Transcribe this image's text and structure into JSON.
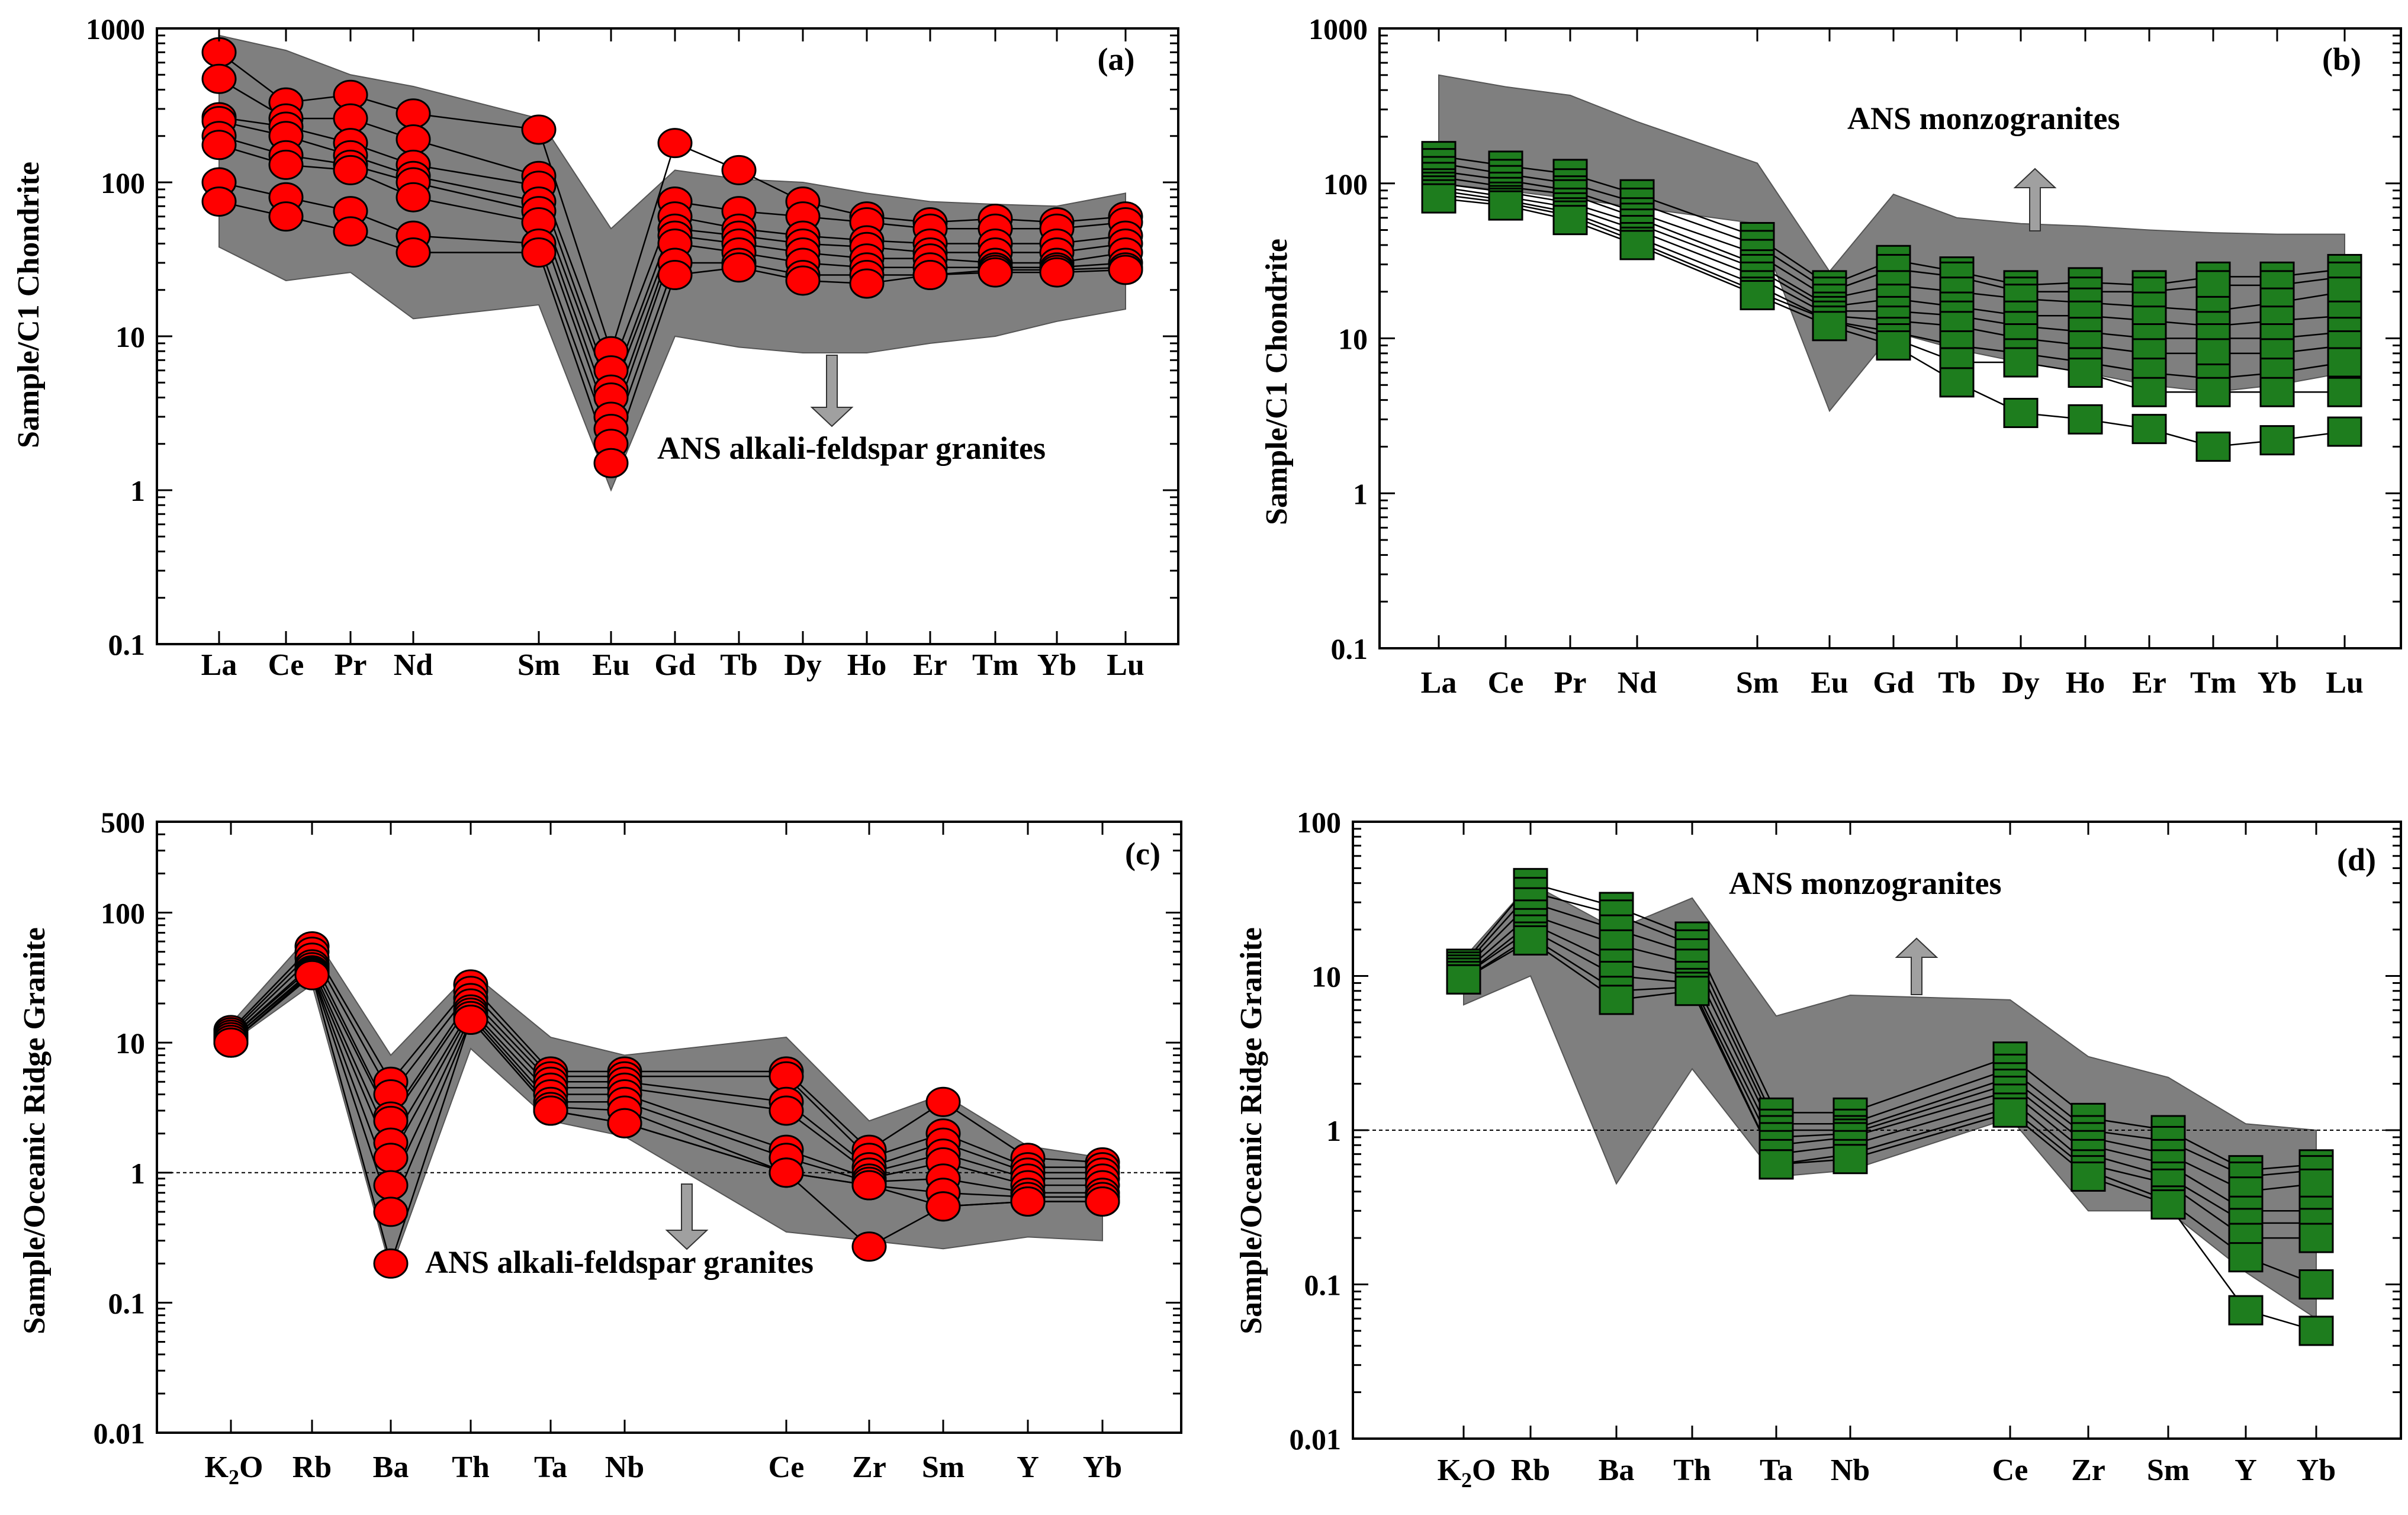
{
  "colors": {
    "field": "#7f7f7f",
    "red_marker": "#ff0000",
    "green_marker": "#1e7d1e",
    "line": "#000000",
    "arrow": "#a0a0a0"
  },
  "chart_data": [
    {
      "id": "a",
      "type": "line",
      "panel_label": "(a)",
      "ylabel": "Sample/C1 Chondrite",
      "yscale": "log",
      "ylim": [
        0.1,
        1000
      ],
      "yticks": [
        "0.1",
        "1",
        "10",
        "100",
        "1000"
      ],
      "categories": [
        "La",
        "Ce",
        "Pr",
        "Nd",
        "Sm",
        "Eu",
        "Gd",
        "Tb",
        "Dy",
        "Ho",
        "Er",
        "Tm",
        "Yb",
        "Lu"
      ],
      "field_label": "ANS alkali-feldspar granites",
      "arrow": "down",
      "marker": "circle",
      "marker_color": "#ff0000",
      "field_upper": [
        900,
        720,
        500,
        420,
        260,
        50,
        120,
        105,
        100,
        85,
        75,
        72,
        70,
        85
      ],
      "field_lower": [
        38,
        23,
        26,
        13,
        16,
        1.0,
        10,
        8.5,
        7.8,
        7.8,
        9,
        10,
        12.5,
        15
      ],
      "series": [
        {
          "name": "s1",
          "values": [
            700,
            330,
            370,
            280,
            220,
            8,
            180,
            120,
            75,
            60,
            55,
            58,
            55,
            60
          ]
        },
        {
          "name": "s2",
          "values": [
            470,
            260,
            260,
            190,
            110,
            6,
            75,
            65,
            60,
            55,
            50,
            50,
            50,
            55
          ]
        },
        {
          "name": "s3",
          "values": [
            265,
            230,
            180,
            130,
            95,
            4.5,
            60,
            50,
            45,
            42,
            40,
            40,
            40,
            45
          ]
        },
        {
          "name": "s4",
          "values": [
            250,
            200,
            150,
            110,
            75,
            4,
            50,
            45,
            40,
            38,
            35,
            35,
            35,
            40
          ]
        },
        {
          "name": "s5",
          "values": [
            200,
            150,
            130,
            100,
            65,
            3,
            45,
            40,
            35,
            32,
            32,
            30,
            30,
            35
          ]
        },
        {
          "name": "s6",
          "values": [
            175,
            130,
            120,
            80,
            55,
            2.5,
            40,
            35,
            30,
            28,
            28,
            28,
            28,
            30
          ]
        },
        {
          "name": "s7",
          "values": [
            100,
            80,
            65,
            45,
            40,
            2,
            30,
            30,
            25,
            25,
            25,
            27,
            27,
            28
          ]
        },
        {
          "name": "s8",
          "values": [
            75,
            60,
            48,
            35,
            35,
            1.5,
            25,
            28,
            23,
            22,
            25,
            26,
            26,
            27
          ]
        }
      ]
    },
    {
      "id": "b",
      "type": "line",
      "panel_label": "(b)",
      "ylabel": "Sample/C1 Chondrite",
      "yscale": "log",
      "ylim": [
        0.1,
        1000
      ],
      "yticks": [
        "0.1",
        "1",
        "10",
        "100",
        "1000"
      ],
      "categories": [
        "La",
        "Ce",
        "Pr",
        "Nd",
        "Sm",
        "Eu",
        "Gd",
        "Tb",
        "Dy",
        "Ho",
        "Er",
        "Tm",
        "Yb",
        "Lu"
      ],
      "field_label": "ANS monzogranites",
      "arrow": "up",
      "marker": "square",
      "marker_color": "#1e7d1e",
      "field_upper": [
        500,
        420,
        370,
        250,
        135,
        27,
        85,
        60,
        55,
        53,
        50,
        48,
        47,
        47
      ],
      "field_lower": [
        100,
        90,
        80,
        70,
        55,
        3.4,
        11,
        8.5,
        7,
        6,
        5,
        4.5,
        5,
        6
      ],
      "series": [
        {
          "name": "s1",
          "values": [
            150,
            130,
            115,
            85,
            45,
            22,
            32,
            27,
            22,
            23,
            22,
            25,
            25,
            28
          ]
        },
        {
          "name": "s2",
          "values": [
            135,
            115,
            100,
            75,
            40,
            20,
            28,
            25,
            20,
            20,
            20,
            22,
            22,
            25
          ]
        },
        {
          "name": "s3",
          "values": [
            120,
            105,
            90,
            65,
            35,
            18,
            22,
            20,
            18,
            17,
            16,
            15,
            17,
            20
          ]
        },
        {
          "name": "s4",
          "values": [
            110,
            95,
            85,
            60,
            30,
            16,
            18,
            16,
            14,
            14,
            13,
            12,
            13,
            14
          ]
        },
        {
          "name": "s5",
          "values": [
            100,
            88,
            75,
            55,
            28,
            15,
            15,
            14,
            12,
            11,
            10,
            10,
            10,
            11
          ]
        },
        {
          "name": "s6",
          "values": [
            95,
            82,
            70,
            50,
            25,
            14,
            13,
            12,
            10,
            9,
            8,
            8,
            8,
            9
          ]
        },
        {
          "name": "s7",
          "values": [
            90,
            78,
            65,
            45,
            22,
            13,
            11,
            9,
            8,
            7,
            6,
            5.5,
            6,
            7
          ]
        },
        {
          "name": "s8",
          "values": [
            85,
            75,
            62,
            42,
            20,
            13,
            10,
            7,
            7,
            6,
            4.5,
            4.5,
            4.5,
            4.5
          ]
        },
        {
          "name": "s9",
          "values": [
            80,
            72,
            58,
            40,
            19,
            12,
            9,
            5.2,
            3.3,
            3.0,
            2.6,
            2.0,
            2.2,
            2.5
          ]
        }
      ]
    },
    {
      "id": "c",
      "type": "line",
      "panel_label": "(c)",
      "ylabel": "Sample/Oceanic Ridge Granite",
      "yscale": "log",
      "ylim": [
        0.01,
        500
      ],
      "yticks": [
        "0.01",
        "0.1",
        "1",
        "10",
        "100",
        "500"
      ],
      "categories": [
        "K2O",
        "Rb",
        "Ba",
        "Th",
        "Ta",
        "Nb",
        "",
        "Ce",
        "Zr",
        "Sm",
        "Y",
        "Yb"
      ],
      "category_labels": [
        "K",
        "Rb",
        "Ba",
        "Th",
        "Ta",
        "Nb",
        "",
        "Ce",
        "Zr",
        "Sm",
        "Y",
        "Yb"
      ],
      "k2o_subscript": "2",
      "k2o_tail": "O",
      "reference_line": 1,
      "field_label": "ANS alkali-feldspar granites",
      "arrow": "down",
      "marker": "circle",
      "marker_color": "#ff0000",
      "field_upper": [
        14,
        70,
        8,
        35,
        11,
        8,
        null,
        11,
        2.5,
        4,
        1.6,
        1.3
      ],
      "field_lower": [
        10,
        28,
        0.18,
        9,
        2.5,
        1.9,
        null,
        0.35,
        0.3,
        0.26,
        0.32,
        0.3
      ],
      "series": [
        {
          "name": "s1",
          "values": [
            12.5,
            55,
            5,
            28,
            6,
            6,
            null,
            6,
            1.5,
            3.5,
            1.3,
            1.2
          ]
        },
        {
          "name": "s2",
          "values": [
            12,
            50,
            4,
            25,
            5.5,
            5.5,
            null,
            5.5,
            1.3,
            2,
            1.1,
            1.1
          ]
        },
        {
          "name": "s3",
          "values": [
            11.5,
            45,
            2.7,
            22,
            5,
            5,
            null,
            3.5,
            1.1,
            1.7,
            1,
            1
          ]
        },
        {
          "name": "s4",
          "values": [
            11,
            40,
            2.5,
            20,
            4.5,
            4.5,
            null,
            3,
            1,
            1.4,
            0.9,
            0.9
          ]
        },
        {
          "name": "s5",
          "values": [
            11,
            38,
            1.7,
            18,
            4,
            4,
            null,
            1.5,
            0.9,
            1.2,
            0.8,
            0.8
          ]
        },
        {
          "name": "s6",
          "values": [
            10.5,
            36,
            1.3,
            17,
            3.5,
            3.5,
            null,
            1.3,
            0.85,
            0.9,
            0.7,
            0.7
          ]
        },
        {
          "name": "s7",
          "values": [
            10.5,
            35,
            0.8,
            16,
            3.2,
            3,
            null,
            1,
            0.8,
            0.7,
            0.65,
            0.65
          ]
        },
        {
          "name": "s8",
          "values": [
            10,
            34,
            0.5,
            15,
            3,
            2.4,
            null,
            1,
            0.27,
            0.55,
            0.6,
            0.6
          ]
        },
        {
          "name": "s9",
          "values": [
            10,
            33,
            0.2,
            15,
            3,
            2.4,
            null,
            1,
            0.8,
            0.55,
            0.6,
            0.6
          ]
        }
      ]
    },
    {
      "id": "d",
      "type": "line",
      "panel_label": "(d)",
      "ylabel": "Sample/Oceanic Ridge Granite",
      "yscale": "log",
      "ylim": [
        0.01,
        100
      ],
      "yticks": [
        "0.01",
        "0.1",
        "1",
        "10",
        "100"
      ],
      "categories": [
        "K2O",
        "Rb",
        "Ba",
        "Th",
        "Ta",
        "Nb",
        "",
        "Ce",
        "Zr",
        "Sm",
        "Y",
        "Yb"
      ],
      "category_labels": [
        "K",
        "Rb",
        "Ba",
        "Th",
        "Ta",
        "Nb",
        "",
        "Ce",
        "Zr",
        "Sm",
        "Y",
        "Yb"
      ],
      "k2o_subscript": "2",
      "k2o_tail": "O",
      "reference_line": 1,
      "field_label": "ANS monzogranites",
      "arrow": "up",
      "marker": "square",
      "marker_color": "#1e7d1e",
      "field_upper": [
        13,
        40,
        20,
        32,
        5.5,
        7.5,
        null,
        7,
        3,
        2.2,
        1.1,
        1
      ],
      "field_lower": [
        6.5,
        10,
        0.45,
        2.5,
        0.5,
        0.55,
        null,
        1.2,
        0.3,
        0.3,
        0.12,
        0.06
      ],
      "series": [
        {
          "name": "s1",
          "values": [
            12,
            40,
            28,
            18,
            1.3,
            1.3,
            null,
            3,
            1.2,
            1,
            0.55,
            0.6
          ]
        },
        {
          "name": "s2",
          "values": [
            11.5,
            35,
            25,
            16,
            1.1,
            1.1,
            null,
            2.5,
            1,
            0.85,
            0.5,
            0.55
          ]
        },
        {
          "name": "s3",
          "values": [
            11,
            30,
            20,
            14,
            1,
            1,
            null,
            2.2,
            0.9,
            0.7,
            0.4,
            0.45
          ]
        },
        {
          "name": "s4",
          "values": [
            10.5,
            25,
            16,
            12,
            0.9,
            0.95,
            null,
            2,
            0.8,
            0.6,
            0.3,
            0.3
          ]
        },
        {
          "name": "s5",
          "values": [
            10,
            22,
            12,
            10,
            0.8,
            0.9,
            null,
            1.8,
            0.7,
            0.5,
            0.25,
            0.25
          ]
        },
        {
          "name": "s6",
          "values": [
            10,
            20,
            10,
            9,
            0.7,
            0.8,
            null,
            1.6,
            0.6,
            0.45,
            0.2,
            0.2
          ]
        },
        {
          "name": "s7",
          "values": [
            9.5,
            18,
            8,
            8.5,
            0.6,
            0.7,
            null,
            1.4,
            0.55,
            0.35,
            0.15,
            0.1
          ]
        },
        {
          "name": "s8",
          "values": [
            9.5,
            17,
            7,
            8,
            0.6,
            0.65,
            null,
            1.3,
            0.5,
            0.33,
            0.068,
            0.05
          ]
        }
      ]
    }
  ]
}
